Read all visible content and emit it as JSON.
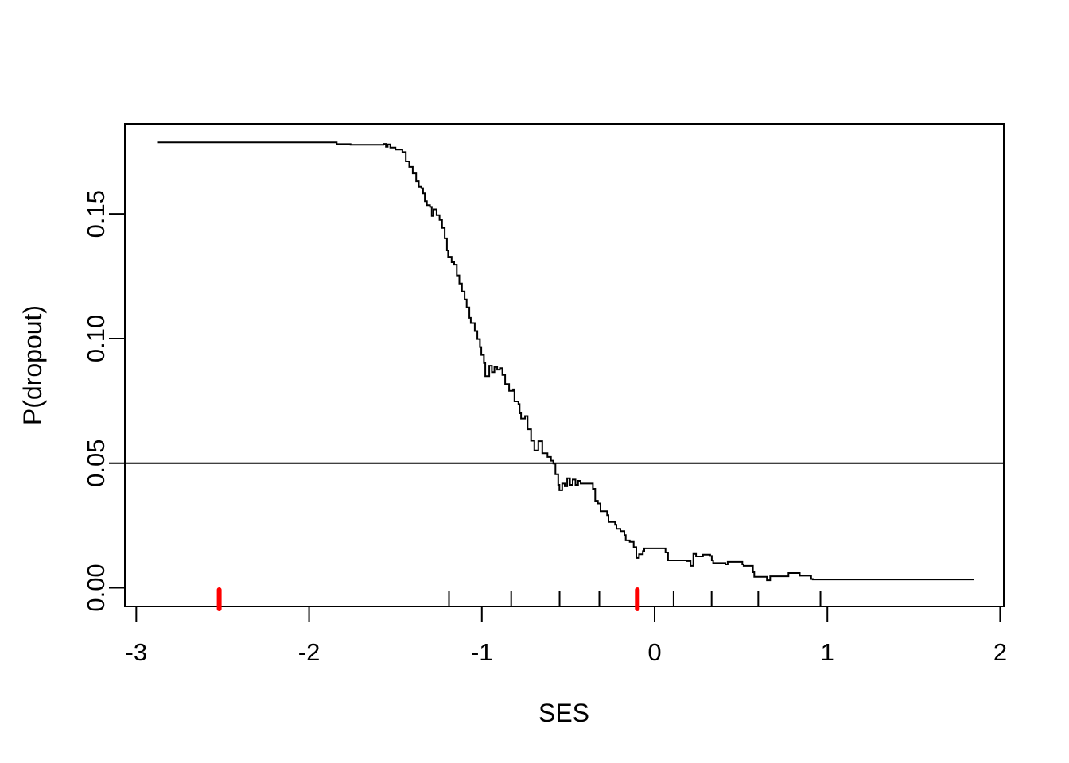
{
  "figure": {
    "background": "#ffffff",
    "foreground": "#000000"
  },
  "chart_data": {
    "type": "line",
    "title": "",
    "xlabel": "SES",
    "ylabel": "P(dropout)",
    "xlim": [
      -3.066,
      2.021
    ],
    "ylim": [
      -0.0075,
      0.1861
    ],
    "x_ticks": [
      -3,
      -2,
      -1,
      0,
      1,
      2
    ],
    "x_tick_labels": [
      "-3",
      "-2",
      "-1",
      "0",
      "1",
      "2"
    ],
    "y_ticks": [
      0.0,
      0.05,
      0.1,
      0.15
    ],
    "y_tick_labels": [
      "0.00",
      "0.05",
      "0.10",
      "0.15"
    ],
    "grid": false,
    "legend": "none",
    "reference_line_y": 0.05,
    "curve_color": "#000000",
    "rug_color_black": "#000000",
    "rug_color_red": "#ff0000",
    "rug_black_x": [
      -1.19,
      -0.83,
      -0.55,
      -0.32,
      0.11,
      0.33,
      0.6,
      0.96
    ],
    "rug_red_x": [
      -2.52,
      -0.1
    ],
    "series": [
      {
        "name": "P(dropout) step curve",
        "style": "step",
        "points": [
          [
            -2.875,
            0.1787
          ],
          [
            -1.845,
            0.1787
          ],
          [
            -1.84,
            0.178
          ],
          [
            -1.76,
            0.1777
          ],
          [
            -1.6,
            0.1777
          ],
          [
            -1.57,
            0.1781
          ],
          [
            -1.555,
            0.1769
          ],
          [
            -1.545,
            0.1779
          ],
          [
            -1.53,
            0.1766
          ],
          [
            -1.5,
            0.1758
          ],
          [
            -1.46,
            0.1748
          ],
          [
            -1.44,
            0.1711
          ],
          [
            -1.42,
            0.1689
          ],
          [
            -1.4,
            0.1663
          ],
          [
            -1.38,
            0.1631
          ],
          [
            -1.365,
            0.161
          ],
          [
            -1.35,
            0.1604
          ],
          [
            -1.34,
            0.1583
          ],
          [
            -1.33,
            0.1551
          ],
          [
            -1.318,
            0.1535
          ],
          [
            -1.3,
            0.1528
          ],
          [
            -1.29,
            0.1492
          ],
          [
            -1.28,
            0.1518
          ],
          [
            -1.262,
            0.1495
          ],
          [
            -1.245,
            0.1476
          ],
          [
            -1.23,
            0.1444
          ],
          [
            -1.215,
            0.1402
          ],
          [
            -1.202,
            0.1354
          ],
          [
            -1.195,
            0.1328
          ],
          [
            -1.175,
            0.1306
          ],
          [
            -1.16,
            0.1296
          ],
          [
            -1.145,
            0.1253
          ],
          [
            -1.13,
            0.1221
          ],
          [
            -1.115,
            0.1189
          ],
          [
            -1.1,
            0.1157
          ],
          [
            -1.088,
            0.1125
          ],
          [
            -1.072,
            0.1083
          ],
          [
            -1.064,
            0.1062
          ],
          [
            -1.041,
            0.103
          ],
          [
            -1.026,
            0.0998
          ],
          [
            -1.011,
            0.0966
          ],
          [
            -1.003,
            0.0934
          ],
          [
            -0.988,
            0.0902
          ],
          [
            -0.98,
            0.0849
          ],
          [
            -0.957,
            0.0891
          ],
          [
            -0.942,
            0.0865
          ],
          [
            -0.927,
            0.0886
          ],
          [
            -0.911,
            0.0875
          ],
          [
            -0.896,
            0.0881
          ],
          [
            -0.881,
            0.0854
          ],
          [
            -0.865,
            0.0817
          ],
          [
            -0.842,
            0.079
          ],
          [
            -0.819,
            0.0796
          ],
          [
            -0.811,
            0.0748
          ],
          [
            -0.788,
            0.0737
          ],
          [
            -0.781,
            0.07
          ],
          [
            -0.773,
            0.0679
          ],
          [
            -0.75,
            0.0689
          ],
          [
            -0.735,
            0.0636
          ],
          [
            -0.715,
            0.059
          ],
          [
            -0.696,
            0.0551
          ],
          [
            -0.673,
            0.0588
          ],
          [
            -0.65,
            0.054
          ],
          [
            -0.62,
            0.0525
          ],
          [
            -0.6,
            0.051
          ],
          [
            -0.586,
            0.0498
          ],
          [
            -0.574,
            0.0455
          ],
          [
            -0.558,
            0.0413
          ],
          [
            -0.551,
            0.0391
          ],
          [
            -0.535,
            0.0418
          ],
          [
            -0.52,
            0.0407
          ],
          [
            -0.506,
            0.0439
          ],
          [
            -0.49,
            0.0413
          ],
          [
            -0.474,
            0.0434
          ],
          [
            -0.458,
            0.0413
          ],
          [
            -0.443,
            0.0429
          ],
          [
            -0.428,
            0.0418
          ],
          [
            -0.366,
            0.0418
          ],
          [
            -0.357,
            0.0397
          ],
          [
            -0.344,
            0.0349
          ],
          [
            -0.328,
            0.0338
          ],
          [
            -0.313,
            0.0307
          ],
          [
            -0.275,
            0.0291
          ],
          [
            -0.267,
            0.0264
          ],
          [
            -0.229,
            0.0253
          ],
          [
            -0.221,
            0.0237
          ],
          [
            -0.198,
            0.0227
          ],
          [
            -0.175,
            0.0211
          ],
          [
            -0.167,
            0.019
          ],
          [
            -0.144,
            0.0184
          ],
          [
            -0.121,
            0.0163
          ],
          [
            -0.106,
            0.012
          ],
          [
            -0.09,
            0.0135
          ],
          [
            -0.068,
            0.0147
          ],
          [
            -0.06,
            0.0158
          ],
          [
            0.055,
            0.0158
          ],
          [
            0.063,
            0.0142
          ],
          [
            0.078,
            0.011
          ],
          [
            0.184,
            0.0107
          ],
          [
            0.208,
            0.0088
          ],
          [
            0.224,
            0.0136
          ],
          [
            0.24,
            0.0126
          ],
          [
            0.28,
            0.0133
          ],
          [
            0.322,
            0.0128
          ],
          [
            0.331,
            0.011
          ],
          [
            0.339,
            0.0099
          ],
          [
            0.4,
            0.0099
          ],
          [
            0.41,
            0.0094
          ],
          [
            0.423,
            0.0104
          ],
          [
            0.5,
            0.0104
          ],
          [
            0.508,
            0.0094
          ],
          [
            0.515,
            0.0088
          ],
          [
            0.561,
            0.0088
          ],
          [
            0.569,
            0.0062
          ],
          [
            0.577,
            0.0044
          ],
          [
            0.646,
            0.0044
          ],
          [
            0.65,
            0.003
          ],
          [
            0.669,
            0.0046
          ],
          [
            0.768,
            0.0046
          ],
          [
            0.775,
            0.0059
          ],
          [
            0.83,
            0.0059
          ],
          [
            0.84,
            0.0048
          ],
          [
            0.897,
            0.0048
          ],
          [
            0.906,
            0.0035
          ],
          [
            0.915,
            0.0033
          ],
          [
            1.85,
            0.0033
          ]
        ]
      }
    ]
  }
}
